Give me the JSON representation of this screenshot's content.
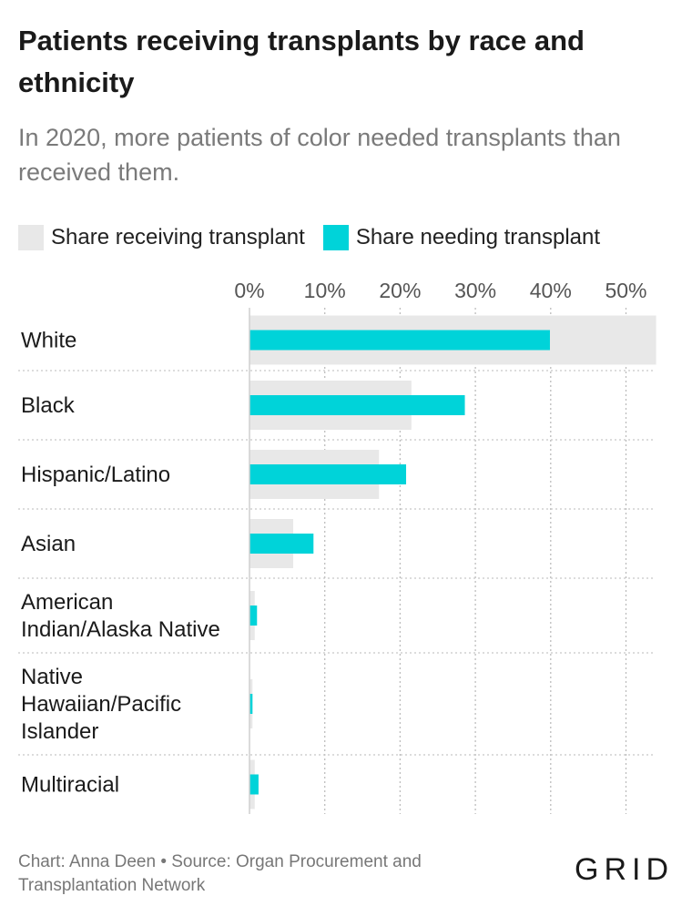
{
  "header": {
    "title": "Patients receiving transplants by race and ethnicity",
    "subtitle": "In 2020, more patients of color needed transplants than received them."
  },
  "legend": {
    "items": [
      {
        "label": "Share receiving transplant",
        "color": "#e8e8e8"
      },
      {
        "label": "Share needing transplant",
        "color": "#00d3d9"
      }
    ]
  },
  "chart_data": {
    "type": "bar",
    "orientation": "horizontal",
    "categories": [
      [
        "White"
      ],
      [
        "Black"
      ],
      [
        "Hispanic/Latino"
      ],
      [
        "Asian"
      ],
      [
        "American",
        "Indian/Alaska Native"
      ],
      [
        "Native",
        "Hawaiian/Pacific",
        "Islander"
      ],
      [
        "Multiracial"
      ]
    ],
    "series": [
      {
        "name": "Share receiving transplant",
        "color": "#e8e8e8",
        "values": [
          54,
          21.5,
          17.2,
          5.8,
          0.7,
          0.4,
          0.7
        ]
      },
      {
        "name": "Share needing transplant",
        "color": "#00d3d9",
        "values": [
          39.9,
          28.6,
          20.8,
          8.5,
          1.0,
          0.4,
          1.2
        ]
      }
    ],
    "x_ticks": [
      "0%",
      "10%",
      "20%",
      "30%",
      "40%",
      "50%"
    ],
    "x_tick_values": [
      0,
      10,
      20,
      30,
      40,
      50
    ],
    "xlim": [
      0,
      54
    ],
    "grid": true,
    "legend_position": "top"
  },
  "footer": {
    "credit": "Chart: Anna Deen • Source: Organ Procurement and Transplantation Network",
    "logo": "GRID"
  }
}
